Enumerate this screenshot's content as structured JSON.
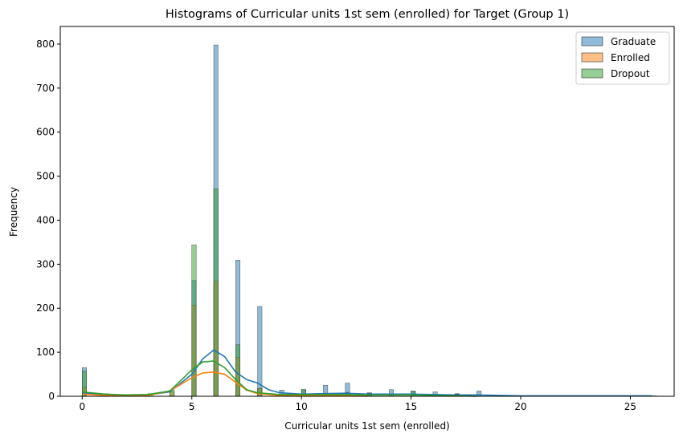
{
  "chart_data": {
    "type": "histogram",
    "title": "Histograms of Curricular units 1st sem (enrolled) for Target (Group 1)",
    "xlabel": "Curricular units 1st sem (enrolled)",
    "ylabel": "Frequency",
    "xlim": [
      -1,
      27
    ],
    "ylim": [
      0,
      840
    ],
    "xticks": [
      0,
      5,
      10,
      15,
      20,
      25
    ],
    "yticks": [
      0,
      100,
      200,
      300,
      400,
      500,
      600,
      700,
      800
    ],
    "bin_width": 0.2,
    "legend_position": "top-right",
    "grid": false,
    "series": [
      {
        "name": "Graduate",
        "color": "#1f77b4",
        "bins": [
          {
            "x": 0,
            "y": 65
          },
          {
            "x": 5,
            "y": 263
          },
          {
            "x": 6,
            "y": 798
          },
          {
            "x": 7,
            "y": 309
          },
          {
            "x": 8,
            "y": 204
          },
          {
            "x": 9,
            "y": 14
          },
          {
            "x": 10,
            "y": 14
          },
          {
            "x": 11,
            "y": 25
          },
          {
            "x": 12,
            "y": 30
          },
          {
            "x": 13,
            "y": 8
          },
          {
            "x": 14,
            "y": 15
          },
          {
            "x": 15,
            "y": 12
          },
          {
            "x": 16,
            "y": 10
          },
          {
            "x": 17,
            "y": 6
          },
          {
            "x": 18,
            "y": 12
          },
          {
            "x": 19,
            "y": 2
          },
          {
            "x": 20,
            "y": 1
          },
          {
            "x": 21,
            "y": 1
          },
          {
            "x": 23,
            "y": 1
          },
          {
            "x": 26,
            "y": 1
          }
        ],
        "kde": [
          [
            0,
            8
          ],
          [
            1,
            4
          ],
          [
            2,
            2
          ],
          [
            3,
            3
          ],
          [
            4,
            10
          ],
          [
            5,
            50
          ],
          [
            5.5,
            85
          ],
          [
            6,
            105
          ],
          [
            6.5,
            90
          ],
          [
            7,
            55
          ],
          [
            7.5,
            38
          ],
          [
            8,
            30
          ],
          [
            8.5,
            15
          ],
          [
            9,
            8
          ],
          [
            10,
            5
          ],
          [
            11,
            6
          ],
          [
            12,
            7
          ],
          [
            13,
            5
          ],
          [
            14,
            5
          ],
          [
            15,
            5
          ],
          [
            16,
            4
          ],
          [
            17,
            3
          ],
          [
            18,
            3
          ],
          [
            19,
            2
          ],
          [
            20,
            1
          ],
          [
            22,
            1
          ],
          [
            24,
            1
          ],
          [
            26,
            1
          ]
        ]
      },
      {
        "name": "Enrolled",
        "color": "#ff7f0e",
        "bins": [
          {
            "x": 0,
            "y": 20
          },
          {
            "x": 4,
            "y": 10
          },
          {
            "x": 5,
            "y": 207
          },
          {
            "x": 6,
            "y": 261
          },
          {
            "x": 7,
            "y": 88
          },
          {
            "x": 8,
            "y": 18
          },
          {
            "x": 10,
            "y": 5
          },
          {
            "x": 12,
            "y": 6
          }
        ],
        "kde": [
          [
            0,
            5
          ],
          [
            1,
            2
          ],
          [
            2,
            1
          ],
          [
            3,
            2
          ],
          [
            4,
            12
          ],
          [
            5,
            42
          ],
          [
            5.5,
            53
          ],
          [
            6,
            55
          ],
          [
            6.5,
            50
          ],
          [
            7,
            32
          ],
          [
            7.5,
            14
          ],
          [
            8,
            6
          ],
          [
            9,
            2
          ],
          [
            10,
            2
          ],
          [
            11,
            2
          ],
          [
            12,
            1
          ],
          [
            13,
            0
          ]
        ]
      },
      {
        "name": "Dropout",
        "color": "#2ca02c",
        "bins": [
          {
            "x": 0,
            "y": 57
          },
          {
            "x": 1,
            "y": 6
          },
          {
            "x": 2,
            "y": 4
          },
          {
            "x": 3,
            "y": 6
          },
          {
            "x": 4,
            "y": 14
          },
          {
            "x": 5,
            "y": 344
          },
          {
            "x": 6,
            "y": 471
          },
          {
            "x": 7,
            "y": 117
          },
          {
            "x": 8,
            "y": 18
          },
          {
            "x": 10,
            "y": 16
          },
          {
            "x": 11,
            "y": 5
          },
          {
            "x": 12,
            "y": 9
          },
          {
            "x": 13,
            "y": 7
          },
          {
            "x": 15,
            "y": 11
          },
          {
            "x": 17,
            "y": 5
          }
        ],
        "kde": [
          [
            0,
            10
          ],
          [
            1,
            5
          ],
          [
            2,
            3
          ],
          [
            3,
            4
          ],
          [
            4,
            12
          ],
          [
            5,
            60
          ],
          [
            5.5,
            78
          ],
          [
            6,
            80
          ],
          [
            6.5,
            65
          ],
          [
            7,
            38
          ],
          [
            7.5,
            15
          ],
          [
            8,
            8
          ],
          [
            9,
            4
          ],
          [
            10,
            4
          ],
          [
            11,
            4
          ],
          [
            12,
            4
          ],
          [
            13,
            3
          ],
          [
            14,
            3
          ],
          [
            15,
            3
          ],
          [
            16,
            2
          ],
          [
            17,
            1
          ],
          [
            18,
            0
          ]
        ]
      }
    ]
  }
}
